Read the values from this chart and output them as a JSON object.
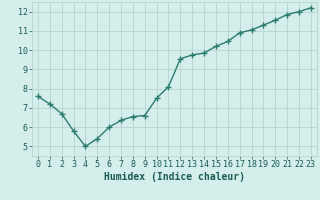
{
  "x": [
    0,
    1,
    2,
    3,
    4,
    5,
    6,
    7,
    8,
    9,
    10,
    11,
    12,
    13,
    14,
    15,
    16,
    17,
    18,
    19,
    20,
    21,
    22,
    23
  ],
  "y": [
    7.6,
    7.2,
    6.7,
    5.8,
    5.0,
    5.4,
    6.0,
    6.35,
    6.55,
    6.6,
    7.5,
    8.1,
    9.55,
    9.75,
    9.85,
    10.2,
    10.45,
    10.9,
    11.05,
    11.3,
    11.55,
    11.85,
    12.0,
    12.2
  ],
  "line_color": "#2d7d6e",
  "marker": "+",
  "markersize": 4,
  "linewidth": 1.0,
  "bg_color": "#d4eeeb",
  "grid_color": "#b8d4d0",
  "xlabel": "Humidex (Indice chaleur)",
  "xlim": [
    -0.5,
    23.5
  ],
  "ylim": [
    4.5,
    12.5
  ],
  "yticks": [
    5,
    6,
    7,
    8,
    9,
    10,
    11,
    12
  ],
  "xticks": [
    0,
    1,
    2,
    3,
    4,
    5,
    6,
    7,
    8,
    9,
    10,
    11,
    12,
    13,
    14,
    15,
    16,
    17,
    18,
    19,
    20,
    21,
    22,
    23
  ],
  "xlabel_fontsize": 7,
  "tick_fontsize": 6,
  "tick_color": "#1a5c52",
  "label_color": "#1a5c52"
}
